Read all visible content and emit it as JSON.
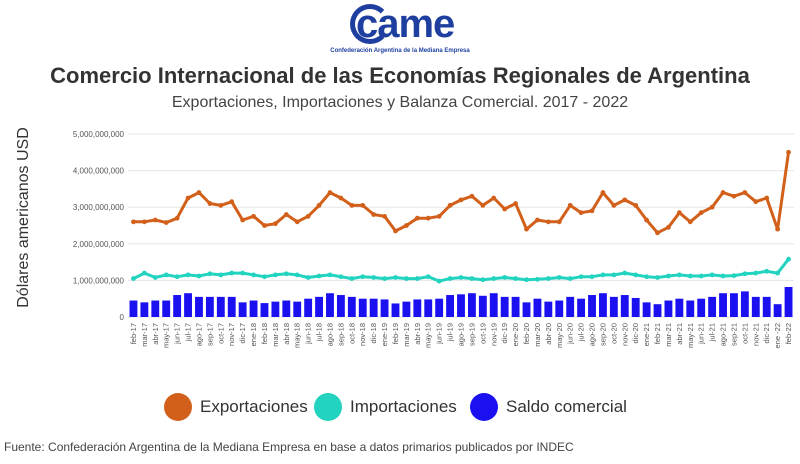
{
  "logo": {
    "mark": "came",
    "tagline": "Confederación Argentina de la Mediana Empresa"
  },
  "header": {
    "title": "Comercio Internacional de las Economías Regionales de Argentina",
    "subtitle": "Exportaciones, Importaciones y Balanza Comercial. 2017 - 2022"
  },
  "source": "Fuente: Confederación Argentina de la Mediana Empresa en base a datos primarios publicados por INDEC",
  "colors": {
    "exportaciones": "#d2601a",
    "importaciones": "#22d3bf",
    "saldo": "#1a10f0"
  },
  "chart_data": {
    "type": "bar+line",
    "title": "Comercio Internacional de las Economías Regionales de Argentina",
    "ylabel": "Dólares americanos USD",
    "xlabel": "",
    "ylim": [
      0,
      5000000000
    ],
    "yticks": [
      "0",
      "1,000,000,000",
      "2,000,000,000",
      "3,000,000,000",
      "4,000,000,000",
      "5,000,000,000"
    ],
    "ytick_values": [
      0,
      1000000000,
      2000000000,
      3000000000,
      4000000000,
      5000000000
    ],
    "categories": [
      "feb-17",
      "mar-17",
      "abr-17",
      "may-17",
      "jun-17",
      "jul-17",
      "ago-17",
      "sep-17",
      "oct-17",
      "nov-17",
      "dic-17",
      "ene-18",
      "feb-18",
      "mar-18",
      "abr-18",
      "may-18",
      "jun-18",
      "jul-18",
      "ago-18",
      "sep-18",
      "oct-18",
      "nov-18",
      "dic-18",
      "ene-19",
      "feb-19",
      "mar-19",
      "abr-19",
      "may-19",
      "jun-19",
      "jul-19",
      "ago-19",
      "sep-19",
      "oct-19",
      "nov-19",
      "dic-19",
      "ene-20",
      "feb-20",
      "mar-20",
      "abr-20",
      "may-20",
      "jun-20",
      "jul-20",
      "ago-20",
      "sep-20",
      "oct-20",
      "nov-20",
      "dic-20",
      "ene-21",
      "feb-21",
      "mar-21",
      "abr-21",
      "may-21",
      "jun-21",
      "jul-21",
      "ago-21",
      "sep-21",
      "oct-21",
      "nov-21",
      "dic-21",
      "ene-22",
      "feb-22"
    ],
    "tick_labels": [
      "feb-17",
      "mar-17",
      "abr-17",
      "may-17",
      "jun-17",
      "jul-17",
      "ago-17",
      "sep-17",
      "oct-17",
      "nov-17",
      "dic-17",
      "ene-18",
      "feb-18",
      "mar-18",
      "abr-18",
      "may-18",
      "jun-18",
      "jul-18",
      "ago-18",
      "sep-18",
      "oct-18",
      "nov-18",
      "dic-18",
      "ene-19",
      "feb-19",
      "mar-19",
      "abr-19",
      "may-19",
      "jun-19",
      "jul-19",
      "ago-19",
      "sep-19",
      "oct-19",
      "nov-19",
      "dic-19",
      "ene-20",
      "feb-20",
      "mar-20",
      "abr-20",
      "may-20",
      "jun-20",
      "jul-20",
      "ago-20",
      "sep-20",
      "oct-20",
      "nov-20",
      "dic-20",
      "ene-21",
      "feb-21",
      "mar-21",
      "abr-21",
      "may-21",
      "jun-21",
      "jul-21",
      "ago-21",
      "sep-21",
      "oct-21",
      "nov-21",
      "dic-21",
      "ene -22",
      "feb-22"
    ],
    "series": [
      {
        "name": "Exportaciones",
        "kind": "line",
        "values": [
          2600000000,
          2600000000,
          2650000000,
          2580000000,
          2700000000,
          3250000000,
          3400000000,
          3100000000,
          3050000000,
          3150000000,
          2650000000,
          2750000000,
          2500000000,
          2550000000,
          2800000000,
          2600000000,
          2750000000,
          3050000000,
          3400000000,
          3250000000,
          3050000000,
          3050000000,
          2800000000,
          2750000000,
          2350000000,
          2500000000,
          2700000000,
          2700000000,
          2750000000,
          3050000000,
          3200000000,
          3300000000,
          3050000000,
          3250000000,
          2950000000,
          3100000000,
          2400000000,
          2650000000,
          2600000000,
          2600000000,
          3050000000,
          2850000000,
          2900000000,
          3400000000,
          3050000000,
          3200000000,
          3050000000,
          2650000000,
          2300000000,
          2450000000,
          2850000000,
          2600000000,
          2850000000,
          3000000000,
          3400000000,
          3300000000,
          3400000000,
          3150000000,
          3250000000,
          2400000000,
          4500000000
        ]
      },
      {
        "name": "Importaciones",
        "kind": "line",
        "values": [
          1050000000,
          1200000000,
          1080000000,
          1150000000,
          1100000000,
          1150000000,
          1120000000,
          1180000000,
          1150000000,
          1200000000,
          1200000000,
          1150000000,
          1100000000,
          1150000000,
          1180000000,
          1150000000,
          1080000000,
          1120000000,
          1150000000,
          1100000000,
          1050000000,
          1100000000,
          1080000000,
          1050000000,
          1080000000,
          1050000000,
          1050000000,
          1100000000,
          980000000,
          1050000000,
          1080000000,
          1050000000,
          1020000000,
          1050000000,
          1080000000,
          1050000000,
          1020000000,
          1030000000,
          1050000000,
          1080000000,
          1050000000,
          1100000000,
          1100000000,
          1150000000,
          1150000000,
          1200000000,
          1150000000,
          1100000000,
          1080000000,
          1120000000,
          1150000000,
          1120000000,
          1120000000,
          1150000000,
          1120000000,
          1130000000,
          1180000000,
          1200000000,
          1250000000,
          1200000000,
          1580000000
        ]
      },
      {
        "name": "Saldo comercial",
        "kind": "bar",
        "values": [
          450000000,
          400000000,
          450000000,
          450000000,
          600000000,
          650000000,
          550000000,
          550000000,
          550000000,
          550000000,
          400000000,
          450000000,
          380000000,
          420000000,
          450000000,
          420000000,
          500000000,
          550000000,
          650000000,
          600000000,
          550000000,
          500000000,
          500000000,
          480000000,
          370000000,
          420000000,
          480000000,
          480000000,
          500000000,
          600000000,
          620000000,
          650000000,
          580000000,
          650000000,
          550000000,
          550000000,
          400000000,
          500000000,
          420000000,
          450000000,
          550000000,
          500000000,
          600000000,
          650000000,
          550000000,
          600000000,
          520000000,
          400000000,
          350000000,
          450000000,
          500000000,
          450000000,
          500000000,
          550000000,
          650000000,
          650000000,
          700000000,
          550000000,
          550000000,
          350000000,
          820000000
        ]
      }
    ],
    "legend_position": "bottom"
  }
}
